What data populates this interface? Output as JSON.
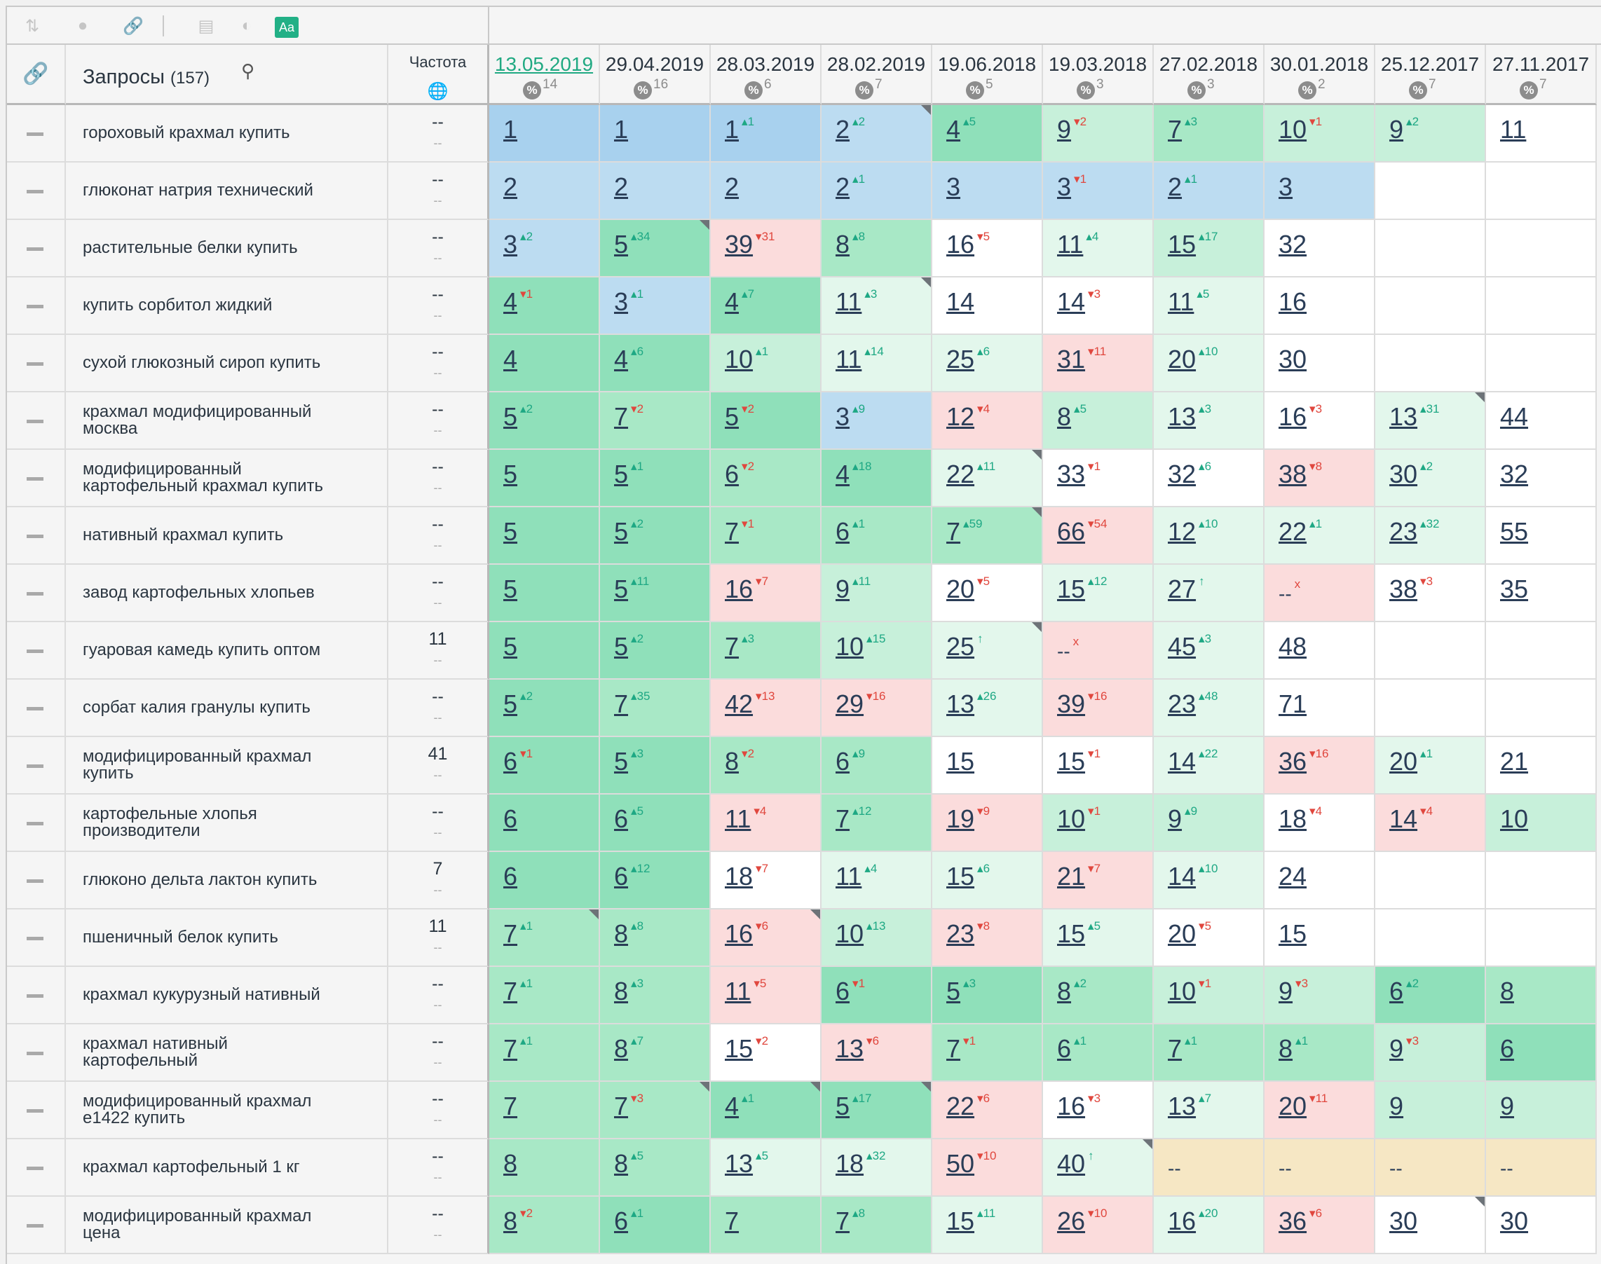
{
  "toolbar": {
    "icons": [
      "sort-icon",
      "toggle-icon",
      "link-icon",
      "window-icon",
      "contrast-icon"
    ],
    "font_label": "Aa"
  },
  "header": {
    "queries_label": "Запросы",
    "queries_count": "(157)",
    "frequency_label": "Частота",
    "dates": [
      {
        "date": "13.05.2019",
        "count": "14",
        "active": true
      },
      {
        "date": "29.04.2019",
        "count": "16"
      },
      {
        "date": "28.03.2019",
        "count": "6"
      },
      {
        "date": "28.02.2019",
        "count": "7"
      },
      {
        "date": "19.06.2018",
        "count": "5"
      },
      {
        "date": "19.03.2018",
        "count": "3"
      },
      {
        "date": "27.02.2018",
        "count": "3"
      },
      {
        "date": "30.01.2018",
        "count": "2"
      },
      {
        "date": "25.12.2017",
        "count": "7"
      },
      {
        "date": "27.11.2017",
        "count": "7"
      }
    ]
  },
  "rows": [
    {
      "q": "гороховый крахмал купить",
      "f": "--",
      "fs": "--",
      "cells": [
        [
          "1",
          "",
          "",
          "b"
        ],
        [
          "1",
          "",
          "",
          "b"
        ],
        [
          "1",
          "1",
          "up",
          "b"
        ],
        [
          "2",
          "2",
          "up",
          "b2",
          1
        ],
        [
          "4",
          "5",
          "up",
          "g1"
        ],
        [
          "9",
          "2",
          "dn",
          "g3"
        ],
        [
          "7",
          "3",
          "up",
          "g2"
        ],
        [
          "10",
          "1",
          "dn",
          "g3"
        ],
        [
          "9",
          "2",
          "up",
          "g3"
        ],
        [
          "11",
          "",
          "",
          "w"
        ]
      ]
    },
    {
      "q": "глюконат натрия технический",
      "f": "--",
      "fs": "--",
      "cells": [
        [
          "2",
          "",
          "",
          "b2"
        ],
        [
          "2",
          "",
          "",
          "b2"
        ],
        [
          "2",
          "",
          "",
          "b2"
        ],
        [
          "2",
          "1",
          "up",
          "b2"
        ],
        [
          "3",
          "",
          "",
          "b2"
        ],
        [
          "3",
          "1",
          "dn",
          "b2"
        ],
        [
          "2",
          "1",
          "up",
          "b2"
        ],
        [
          "3",
          "",
          "",
          "b2"
        ],
        [
          "",
          "",
          "",
          "w"
        ],
        [
          "",
          "",
          "",
          "w"
        ]
      ]
    },
    {
      "q": "растительные белки купить",
      "f": "--",
      "fs": "--",
      "cells": [
        [
          "3",
          "2",
          "up",
          "b2"
        ],
        [
          "5",
          "34",
          "up",
          "g1",
          1
        ],
        [
          "39",
          "31",
          "dn",
          "r"
        ],
        [
          "8",
          "8",
          "up",
          "g2"
        ],
        [
          "16",
          "5",
          "dn",
          "w"
        ],
        [
          "11",
          "4",
          "up",
          "g4"
        ],
        [
          "15",
          "17",
          "up",
          "g3"
        ],
        [
          "32",
          "",
          "",
          "w"
        ],
        [
          "",
          "",
          "",
          "w"
        ],
        [
          "",
          "",
          "",
          "w"
        ]
      ]
    },
    {
      "q": "купить сорбитол жидкий",
      "f": "--",
      "fs": "--",
      "cells": [
        [
          "4",
          "1",
          "dn",
          "g1"
        ],
        [
          "3",
          "1",
          "up",
          "b2"
        ],
        [
          "4",
          "7",
          "up",
          "g1"
        ],
        [
          "11",
          "3",
          "up",
          "g4",
          1
        ],
        [
          "14",
          "",
          "",
          "w"
        ],
        [
          "14",
          "3",
          "dn",
          "w"
        ],
        [
          "11",
          "5",
          "up",
          "g4"
        ],
        [
          "16",
          "",
          "",
          "w"
        ],
        [
          "",
          "",
          "",
          "w"
        ],
        [
          "",
          "",
          "",
          "w"
        ]
      ]
    },
    {
      "q": "сухой глюкозный сироп купить",
      "f": "--",
      "fs": "--",
      "cells": [
        [
          "4",
          "",
          "",
          "g1"
        ],
        [
          "4",
          "6",
          "up",
          "g1"
        ],
        [
          "10",
          "1",
          "up",
          "g3"
        ],
        [
          "11",
          "14",
          "up",
          "g4"
        ],
        [
          "25",
          "6",
          "up",
          "g4"
        ],
        [
          "31",
          "11",
          "dn",
          "r"
        ],
        [
          "20",
          "10",
          "up",
          "g4"
        ],
        [
          "30",
          "",
          "",
          "w"
        ],
        [
          "",
          "",
          "",
          "w"
        ],
        [
          "",
          "",
          "",
          "w"
        ]
      ]
    },
    {
      "q": "крахмал модифицированный\nмосква",
      "f": "--",
      "fs": "--",
      "cells": [
        [
          "5",
          "2",
          "up",
          "g1"
        ],
        [
          "7",
          "2",
          "dn",
          "g2"
        ],
        [
          "5",
          "2",
          "dn",
          "g1"
        ],
        [
          "3",
          "9",
          "up",
          "b2"
        ],
        [
          "12",
          "4",
          "dn",
          "r"
        ],
        [
          "8",
          "5",
          "up",
          "g3"
        ],
        [
          "13",
          "3",
          "up",
          "g4"
        ],
        [
          "16",
          "3",
          "dn",
          "w"
        ],
        [
          "13",
          "31",
          "up",
          "g4",
          1
        ],
        [
          "44",
          "",
          "",
          "w"
        ]
      ]
    },
    {
      "q": "модифицированный\nкартофельный крахмал купить",
      "f": "--",
      "fs": "--",
      "cells": [
        [
          "5",
          "",
          "",
          "g1"
        ],
        [
          "5",
          "1",
          "up",
          "g1"
        ],
        [
          "6",
          "2",
          "dn",
          "g2"
        ],
        [
          "4",
          "18",
          "up",
          "g1"
        ],
        [
          "22",
          "11",
          "up",
          "g4",
          1
        ],
        [
          "33",
          "1",
          "dn",
          "w"
        ],
        [
          "32",
          "6",
          "up",
          "w"
        ],
        [
          "38",
          "8",
          "dn",
          "r"
        ],
        [
          "30",
          "2",
          "up",
          "g4"
        ],
        [
          "32",
          "",
          "",
          "w"
        ]
      ]
    },
    {
      "q": "нативный крахмал купить",
      "f": "--",
      "fs": "--",
      "cells": [
        [
          "5",
          "",
          "",
          "g1"
        ],
        [
          "5",
          "2",
          "up",
          "g1"
        ],
        [
          "7",
          "1",
          "dn",
          "g2"
        ],
        [
          "6",
          "1",
          "up",
          "g2"
        ],
        [
          "7",
          "59",
          "up",
          "g2",
          1
        ],
        [
          "66",
          "54",
          "dn",
          "r"
        ],
        [
          "12",
          "10",
          "up",
          "g4"
        ],
        [
          "22",
          "1",
          "up",
          "g4"
        ],
        [
          "23",
          "32",
          "up",
          "g4"
        ],
        [
          "55",
          "",
          "",
          "w"
        ]
      ]
    },
    {
      "q": "завод картофельных хлопьев",
      "f": "--",
      "fs": "--",
      "cells": [
        [
          "5",
          "",
          "",
          "g1"
        ],
        [
          "5",
          "11",
          "up",
          "g1"
        ],
        [
          "16",
          "7",
          "dn",
          "r"
        ],
        [
          "9",
          "11",
          "up",
          "g3"
        ],
        [
          "20",
          "5",
          "dn",
          "w"
        ],
        [
          "15",
          "12",
          "up",
          "g4"
        ],
        [
          "27",
          "↑",
          "up",
          "g4"
        ],
        [
          "--",
          "x",
          "dn",
          "r",
          "",
          1
        ],
        [
          "38",
          "3",
          "dn",
          "w"
        ],
        [
          "35",
          "",
          "",
          "w"
        ]
      ]
    },
    {
      "q": "гуаровая камедь купить оптом",
      "f": "11",
      "fs": "--",
      "cells": [
        [
          "5",
          "",
          "",
          "g1"
        ],
        [
          "5",
          "2",
          "up",
          "g1"
        ],
        [
          "7",
          "3",
          "up",
          "g2"
        ],
        [
          "10",
          "15",
          "up",
          "g3"
        ],
        [
          "25",
          "↑",
          "up",
          "g4",
          1
        ],
        [
          "--",
          "x",
          "dn",
          "r",
          "",
          1
        ],
        [
          "45",
          "3",
          "up",
          "g4"
        ],
        [
          "48",
          "",
          "",
          "w"
        ],
        [
          "",
          "",
          "",
          "w"
        ],
        [
          "",
          "",
          "",
          "w"
        ]
      ]
    },
    {
      "q": "сорбат калия гранулы купить",
      "f": "--",
      "fs": "--",
      "cells": [
        [
          "5",
          "2",
          "up",
          "g1"
        ],
        [
          "7",
          "35",
          "up",
          "g2"
        ],
        [
          "42",
          "13",
          "dn",
          "r"
        ],
        [
          "29",
          "16",
          "dn",
          "r"
        ],
        [
          "13",
          "26",
          "up",
          "g4"
        ],
        [
          "39",
          "16",
          "dn",
          "r"
        ],
        [
          "23",
          "48",
          "up",
          "g4"
        ],
        [
          "71",
          "",
          "",
          "w"
        ],
        [
          "",
          "",
          "",
          "w"
        ],
        [
          "",
          "",
          "",
          "w"
        ]
      ]
    },
    {
      "q": "модифицированный крахмал\nкупить",
      "f": "41",
      "fs": "--",
      "cells": [
        [
          "6",
          "1",
          "dn",
          "g1"
        ],
        [
          "5",
          "3",
          "up",
          "g1"
        ],
        [
          "8",
          "2",
          "dn",
          "g2"
        ],
        [
          "6",
          "9",
          "up",
          "g2"
        ],
        [
          "15",
          "",
          "",
          "w"
        ],
        [
          "15",
          "1",
          "dn",
          "w"
        ],
        [
          "14",
          "22",
          "up",
          "g4"
        ],
        [
          "36",
          "16",
          "dn",
          "r"
        ],
        [
          "20",
          "1",
          "up",
          "g4"
        ],
        [
          "21",
          "",
          "",
          "w"
        ]
      ]
    },
    {
      "q": "картофельные хлопья\nпроизводители",
      "f": "--",
      "fs": "--",
      "cells": [
        [
          "6",
          "",
          "",
          "g1"
        ],
        [
          "6",
          "5",
          "up",
          "g1"
        ],
        [
          "11",
          "4",
          "dn",
          "r"
        ],
        [
          "7",
          "12",
          "up",
          "g2"
        ],
        [
          "19",
          "9",
          "dn",
          "r"
        ],
        [
          "10",
          "1",
          "dn",
          "g3"
        ],
        [
          "9",
          "9",
          "up",
          "g3"
        ],
        [
          "18",
          "4",
          "dn",
          "w"
        ],
        [
          "14",
          "4",
          "dn",
          "r"
        ],
        [
          "10",
          "",
          "",
          "g3"
        ]
      ]
    },
    {
      "q": "глюконо дельта лактон купить",
      "f": "7",
      "fs": "--",
      "cells": [
        [
          "6",
          "",
          "",
          "g1"
        ],
        [
          "6",
          "12",
          "up",
          "g1"
        ],
        [
          "18",
          "7",
          "dn",
          "w"
        ],
        [
          "11",
          "4",
          "up",
          "g4"
        ],
        [
          "15",
          "6",
          "up",
          "g4"
        ],
        [
          "21",
          "7",
          "dn",
          "r"
        ],
        [
          "14",
          "10",
          "up",
          "g4"
        ],
        [
          "24",
          "",
          "",
          "w"
        ],
        [
          "",
          "",
          "",
          "w"
        ],
        [
          "",
          "",
          "",
          "w"
        ]
      ]
    },
    {
      "q": "пшеничный белок купить",
      "f": "11",
      "fs": "--",
      "cells": [
        [
          "7",
          "1",
          "up",
          "g2",
          1
        ],
        [
          "8",
          "8",
          "up",
          "g2"
        ],
        [
          "16",
          "6",
          "dn",
          "r",
          1
        ],
        [
          "10",
          "13",
          "up",
          "g3"
        ],
        [
          "23",
          "8",
          "dn",
          "r"
        ],
        [
          "15",
          "5",
          "up",
          "g4"
        ],
        [
          "20",
          "5",
          "dn",
          "w"
        ],
        [
          "15",
          "",
          "",
          "w"
        ],
        [
          "",
          "",
          "",
          "w"
        ],
        [
          "",
          "",
          "",
          "w"
        ]
      ]
    },
    {
      "q": "крахмал кукурузный нативный",
      "f": "--",
      "fs": "--",
      "cells": [
        [
          "7",
          "1",
          "up",
          "g2"
        ],
        [
          "8",
          "3",
          "up",
          "g2"
        ],
        [
          "11",
          "5",
          "dn",
          "r"
        ],
        [
          "6",
          "1",
          "dn",
          "g1"
        ],
        [
          "5",
          "3",
          "up",
          "g1"
        ],
        [
          "8",
          "2",
          "up",
          "g2"
        ],
        [
          "10",
          "1",
          "dn",
          "g3"
        ],
        [
          "9",
          "3",
          "dn",
          "g3"
        ],
        [
          "6",
          "2",
          "up",
          "g1"
        ],
        [
          "8",
          "",
          "",
          "g2"
        ]
      ]
    },
    {
      "q": "крахмал нативный\nкартофельный",
      "f": "--",
      "fs": "--",
      "cells": [
        [
          "7",
          "1",
          "up",
          "g2"
        ],
        [
          "8",
          "7",
          "up",
          "g2"
        ],
        [
          "15",
          "2",
          "dn",
          "w"
        ],
        [
          "13",
          "6",
          "dn",
          "r"
        ],
        [
          "7",
          "1",
          "dn",
          "g2"
        ],
        [
          "6",
          "1",
          "up",
          "g2"
        ],
        [
          "7",
          "1",
          "up",
          "g2"
        ],
        [
          "8",
          "1",
          "up",
          "g2"
        ],
        [
          "9",
          "3",
          "dn",
          "g3"
        ],
        [
          "6",
          "",
          "",
          "g1"
        ]
      ]
    },
    {
      "q": "модифицированный крахмал\nе1422 купить",
      "f": "--",
      "fs": "--",
      "cells": [
        [
          "7",
          "",
          "",
          "g2"
        ],
        [
          "7",
          "3",
          "dn",
          "g2",
          1
        ],
        [
          "4",
          "1",
          "up",
          "g1",
          1
        ],
        [
          "5",
          "17",
          "up",
          "g1",
          1
        ],
        [
          "22",
          "6",
          "dn",
          "r"
        ],
        [
          "16",
          "3",
          "dn",
          "w"
        ],
        [
          "13",
          "7",
          "up",
          "g4"
        ],
        [
          "20",
          "11",
          "dn",
          "r"
        ],
        [
          "9",
          "",
          "",
          "g3"
        ],
        [
          "9",
          "",
          "",
          "g3"
        ]
      ]
    },
    {
      "q": "крахмал картофельный 1 кг",
      "f": "--",
      "fs": "--",
      "cells": [
        [
          "8",
          "",
          "",
          "g2"
        ],
        [
          "8",
          "5",
          "up",
          "g2"
        ],
        [
          "13",
          "5",
          "up",
          "g4"
        ],
        [
          "18",
          "32",
          "up",
          "g4"
        ],
        [
          "50",
          "10",
          "dn",
          "r"
        ],
        [
          "40",
          "↑",
          "up",
          "g4",
          1
        ],
        [
          "--",
          "",
          "",
          "y",
          "",
          1
        ],
        [
          "--",
          "",
          "",
          "y",
          "",
          1
        ],
        [
          "--",
          "",
          "",
          "y",
          "",
          1
        ],
        [
          "--",
          "",
          "",
          "y",
          "",
          1
        ]
      ]
    },
    {
      "q": "модифицированный крахмал\nцена",
      "f": "--",
      "fs": "--",
      "cells": [
        [
          "8",
          "2",
          "dn",
          "g2"
        ],
        [
          "6",
          "1",
          "up",
          "g1"
        ],
        [
          "7",
          "",
          "",
          "g2"
        ],
        [
          "7",
          "8",
          "up",
          "g2"
        ],
        [
          "15",
          "11",
          "up",
          "g4"
        ],
        [
          "26",
          "10",
          "dn",
          "r"
        ],
        [
          "16",
          "20",
          "up",
          "g4"
        ],
        [
          "36",
          "6",
          "dn",
          "r"
        ],
        [
          "30",
          "",
          "",
          "w",
          1
        ],
        [
          "30",
          "",
          "",
          "w"
        ]
      ]
    }
  ]
}
